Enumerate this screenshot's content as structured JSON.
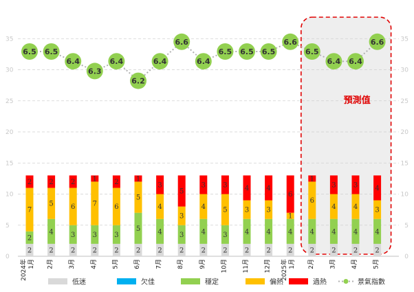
{
  "chart_data": {
    "type": "bar",
    "categories": [
      "2024年\n1月",
      "2月",
      "3月",
      "4月",
      "5月",
      "6月",
      "7月",
      "8月",
      "9月",
      "10月",
      "11月",
      "12月",
      "2025年\n1月",
      "2月",
      "3月",
      "4月",
      "5月"
    ],
    "series": [
      {
        "name": "低迷",
        "color": "#d9d9d9",
        "values": [
          2,
          2,
          2,
          2,
          2,
          2,
          2,
          2,
          2,
          2,
          2,
          2,
          2,
          2,
          2,
          2,
          2
        ]
      },
      {
        "name": "欠佳",
        "color": "#00b0f0",
        "values": [
          0,
          0,
          0,
          0,
          0,
          0,
          0,
          0,
          0,
          0,
          0,
          0,
          0,
          0,
          0,
          0,
          0
        ]
      },
      {
        "name": "穩定",
        "color": "#92d050",
        "values": [
          2,
          4,
          3,
          3,
          3,
          5,
          4,
          3,
          4,
          3,
          4,
          4,
          4,
          4,
          4,
          4,
          4
        ]
      },
      {
        "name": "偏熱",
        "color": "#ffc000",
        "values": [
          7,
          5,
          6,
          7,
          6,
          5,
          4,
          3,
          4,
          5,
          3,
          3,
          1,
          6,
          4,
          4,
          3
        ]
      },
      {
        "name": "過熱",
        "color": "#ff0000",
        "values": [
          2,
          2,
          2,
          1,
          2,
          1,
          3,
          5,
          3,
          3,
          4,
          4,
          6,
          1,
          3,
          3,
          4
        ]
      }
    ],
    "index": {
      "name": "景氣指數",
      "color": "#92d050",
      "values": [
        6.5,
        6.5,
        6.4,
        6.3,
        6.4,
        6.2,
        6.4,
        6.6,
        6.4,
        6.5,
        6.5,
        6.5,
        6.6,
        6.5,
        6.4,
        6.4,
        6.6
      ],
      "labels": [
        "6.5",
        "6.5",
        "6.4",
        "6.3",
        "6.4",
        "6.2",
        "6.4",
        "6.6",
        "6.4",
        "6.5",
        "6.5",
        "6.5",
        "6.6",
        "6.5",
        "6.4",
        "6.4",
        "6.6"
      ]
    },
    "forecast": {
      "label": "預測值",
      "from_index": 13,
      "to_index": 16
    },
    "ylim": [
      0,
      35
    ],
    "yticks": [
      "0",
      "5",
      "10",
      "15",
      "20",
      "25",
      "30",
      "35"
    ],
    "grid": true,
    "legend_position": "bottom"
  }
}
